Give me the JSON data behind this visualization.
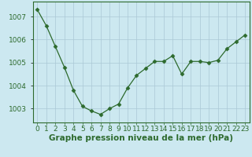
{
  "x": [
    0,
    1,
    2,
    3,
    4,
    5,
    6,
    7,
    8,
    9,
    10,
    11,
    12,
    13,
    14,
    15,
    16,
    17,
    18,
    19,
    20,
    21,
    22,
    23
  ],
  "y": [
    1007.3,
    1006.6,
    1005.7,
    1004.8,
    1003.8,
    1003.1,
    1002.9,
    1002.75,
    1003.0,
    1003.2,
    1003.9,
    1004.45,
    1004.75,
    1005.05,
    1005.05,
    1005.3,
    1004.5,
    1005.05,
    1005.05,
    1005.0,
    1005.1,
    1005.6,
    1005.9,
    1006.2
  ],
  "line_color": "#2d6a2d",
  "marker": "D",
  "marker_size": 2.5,
  "background_color": "#cce8f0",
  "grid_color": "#aac8d5",
  "ylabel_ticks": [
    1003,
    1004,
    1005,
    1006,
    1007
  ],
  "xlabel": "Graphe pression niveau de la mer (hPa)",
  "xlabel_fontsize": 7.5,
  "tick_fontsize": 6.5,
  "ylim": [
    1002.4,
    1007.65
  ],
  "xlim": [
    -0.5,
    23.5
  ]
}
